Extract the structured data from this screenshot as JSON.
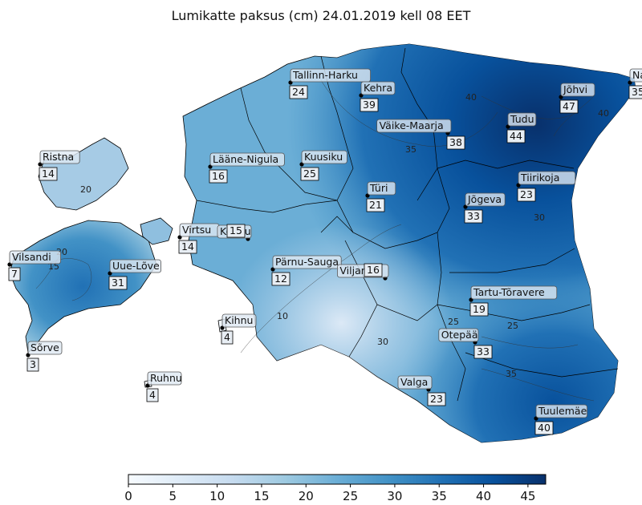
{
  "title": "Lumikatte paksus (cm) 24.01.2019 kell 08 EET",
  "colorbar": {
    "min": 0,
    "max": 47,
    "ticks": [
      "0",
      "5",
      "10",
      "15",
      "20",
      "25",
      "30",
      "35",
      "40",
      "45"
    ],
    "colors": [
      "#f7fbff",
      "#deebf7",
      "#c6dbef",
      "#9ecae1",
      "#6baed6",
      "#4292c6",
      "#2171b5",
      "#08519c",
      "#08306b"
    ]
  },
  "stations": [
    {
      "name": "Tallinn-Harku",
      "value": "24"
    },
    {
      "name": "Kehra",
      "value": "39"
    },
    {
      "name": "Väike-Maarja",
      "value": "38"
    },
    {
      "name": "Tudu",
      "value": "44"
    },
    {
      "name": "Jõhvi",
      "value": "47"
    },
    {
      "name": "Narva",
      "value": "35"
    },
    {
      "name": "Ristna",
      "value": "14"
    },
    {
      "name": "Lääne-Nigula",
      "value": "16"
    },
    {
      "name": "Kuusiku",
      "value": "25"
    },
    {
      "name": "Tiirikoja",
      "value": "23"
    },
    {
      "name": "Türi",
      "value": "21"
    },
    {
      "name": "Jõgeva",
      "value": "33"
    },
    {
      "name": "Virtsu",
      "value": "14"
    },
    {
      "name": "Koodu",
      "value": "15"
    },
    {
      "name": "Vilsandi",
      "value": "7"
    },
    {
      "name": "Uue-Lõve",
      "value": "31"
    },
    {
      "name": "Pärnu-Sauga",
      "value": "12"
    },
    {
      "name": "Viljandi",
      "value": "16"
    },
    {
      "name": "Tartu-Tõravere",
      "value": "19"
    },
    {
      "name": "Kihnu",
      "value": "4"
    },
    {
      "name": "Otepää",
      "value": "33"
    },
    {
      "name": "Sõrve",
      "value": "3"
    },
    {
      "name": "Valga",
      "value": "23"
    },
    {
      "name": "Ruhnu",
      "value": "4"
    },
    {
      "name": "Tuulemäe",
      "value": "40"
    }
  ],
  "contour_labels": [
    "10",
    "15",
    "20",
    "25",
    "30",
    "35",
    "40",
    "25",
    "20",
    "35",
    "40",
    "30",
    "20",
    "25",
    "30",
    "35",
    "10",
    "15",
    "20",
    "25",
    "20",
    "25",
    "30",
    "35"
  ]
}
